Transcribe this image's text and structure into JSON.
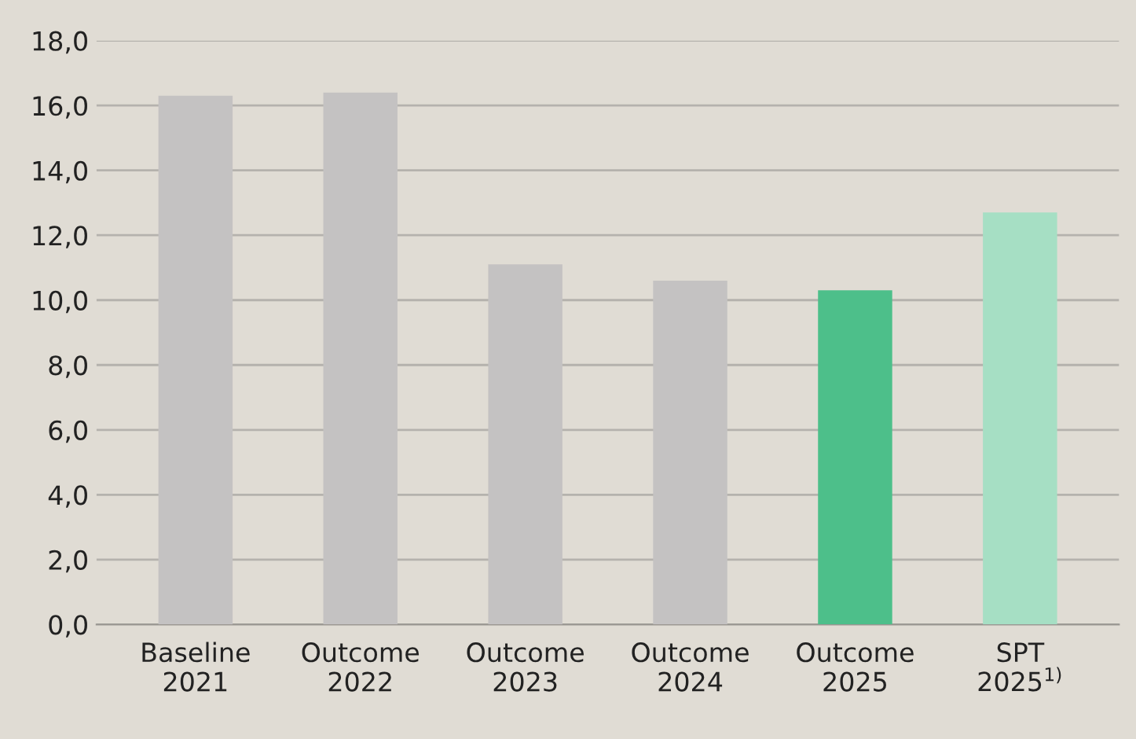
{
  "chart_data": {
    "type": "bar",
    "categories": [
      "Baseline\n2021",
      "Outcome\n2022",
      "Outcome\n2023",
      "Outcome\n2024",
      "Outcome\n2025",
      "SPT\n2025$^{1)}$"
    ],
    "values": [
      16.3,
      16.4,
      11.1,
      10.6,
      10.3,
      12.7
    ],
    "colors": [
      "#c4c2c2",
      "#c4c2c2",
      "#c4c2c2",
      "#c4c2c2",
      "#4dbf8a",
      "#a6dfc4"
    ],
    "ylim": [
      0,
      18
    ],
    "yticks": [
      {
        "value": 0,
        "label": "0,0"
      },
      {
        "value": 2,
        "label": "2,0"
      },
      {
        "value": 4,
        "label": "4,0"
      },
      {
        "value": 6,
        "label": "6,0"
      },
      {
        "value": 8,
        "label": "8,0"
      },
      {
        "value": 10,
        "label": "10,0"
      },
      {
        "value": 12,
        "label": "12,0"
      },
      {
        "value": 14,
        "label": "14,0"
      },
      {
        "value": 16,
        "label": "16,0"
      },
      {
        "value": 18,
        "label": "18,0"
      }
    ],
    "grid": "y"
  }
}
